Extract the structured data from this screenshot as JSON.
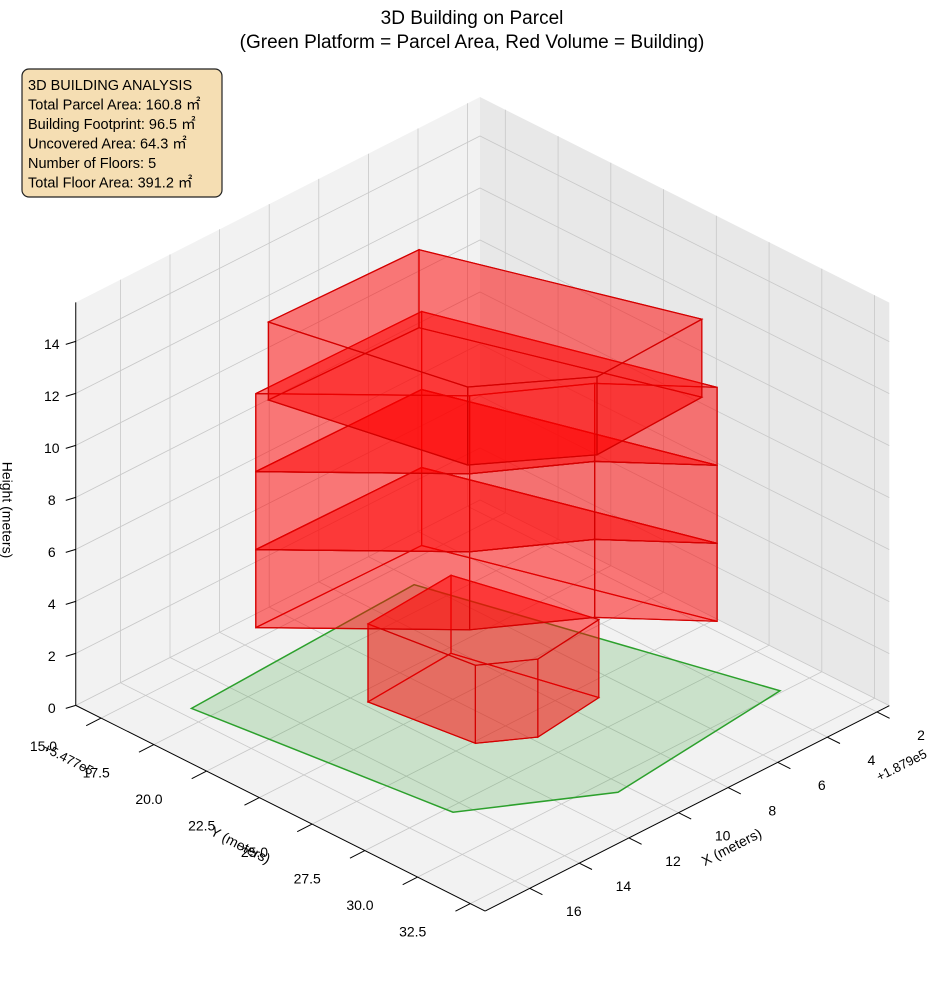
{
  "chart_data": {
    "type": "building3d",
    "title": "3D Building on Parcel",
    "subtitle": "(Green Platform = Parcel Area, Red Volume = Building)",
    "xlabel": "X (meters)",
    "ylabel": "Y (meters)",
    "zlabel": "Height (meters)",
    "x_offset": "+1.879e5",
    "y_offset": "+5.477e5",
    "xlim": [
      1.5,
      17.8
    ],
    "ylim": [
      13.8,
      33.2
    ],
    "zlim": [
      0,
      15.5
    ],
    "xticks": [
      2,
      4,
      6,
      8,
      10,
      12,
      14,
      16
    ],
    "yticks": [
      {
        "value": 15,
        "label": "15.0"
      },
      {
        "value": 17.5,
        "label": "17.5"
      },
      {
        "value": 20,
        "label": "20.0"
      },
      {
        "value": 22.5,
        "label": "22.5"
      },
      {
        "value": 25,
        "label": "25.0"
      },
      {
        "value": 27.5,
        "label": "27.5"
      },
      {
        "value": 30,
        "label": "30.0"
      },
      {
        "value": 32.5,
        "label": "32.5"
      }
    ],
    "zticks": [
      0,
      2,
      4,
      6,
      8,
      10,
      12,
      14
    ],
    "grid": true,
    "annotation": [
      "3D BUILDING ANALYSIS",
      "Total Parcel Area: 160.8 ㎡",
      "Building Footprint: 96.5 ㎡",
      "Uncovered Area: 64.3 ㎡",
      "Number of Floors: 5",
      "Total Floor Area: 391.2 ㎡"
    ],
    "parcel": {
      "color": "#2ca02c",
      "x": [
        15.6,
        6.2,
        3.1,
        10.4,
        14.5
      ],
      "y": [
        16.7,
        16.2,
        29.9,
        30.8,
        27.8
      ]
    },
    "building_color": "#ff0000",
    "floors": [
      {
        "z0": 0,
        "z1": 3,
        "x": [
          11.8,
          11.3,
          9.8,
          7.0,
          8.2
        ],
        "y": [
          20.6,
          25.1,
          26.3,
          25.9,
          20.3
        ]
      },
      {
        "z0": 3,
        "z1": 6,
        "x": [
          14.2,
          10.0,
          7.0,
          4.7,
          7.6
        ],
        "y": [
          18.1,
          23.3,
          25.7,
          28.8,
          18.2
        ]
      },
      {
        "z0": 6,
        "z1": 9,
        "x": [
          14.2,
          10.0,
          7.0,
          4.7,
          7.6
        ],
        "y": [
          18.1,
          23.3,
          25.7,
          28.8,
          18.2
        ]
      },
      {
        "z0": 9,
        "z1": 12,
        "x": [
          14.2,
          10.0,
          7.0,
          4.7,
          7.6
        ],
        "y": [
          18.1,
          23.3,
          25.7,
          28.8,
          18.2
        ]
      },
      {
        "z0": 12,
        "z1": 15,
        "x": [
          14.2,
          8.3,
          5.4,
          9.8,
          12.8
        ],
        "y": [
          18.7,
          18.9,
          28.9,
          29.1,
          26.5
        ]
      }
    ]
  }
}
